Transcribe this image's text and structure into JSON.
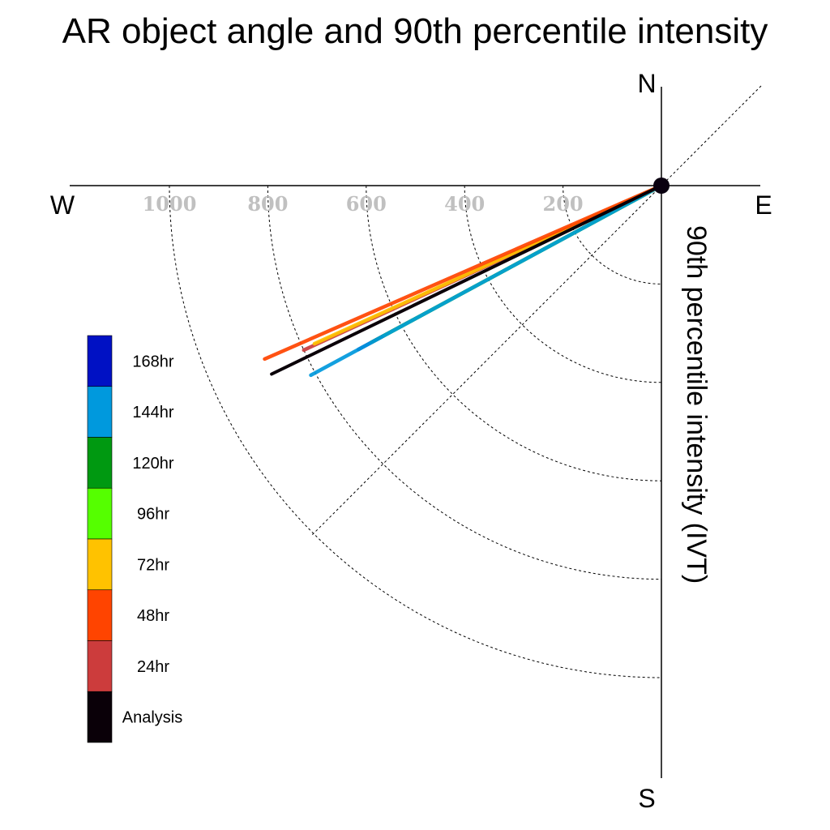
{
  "chart_data": {
    "type": "polar-vector",
    "title": "AR object angle and 90th percentile intensity",
    "radial_label": "90th percentile intensity (IVT)",
    "directions": {
      "north": "N",
      "south": "S",
      "east": "E",
      "west": "W"
    },
    "radial_ticks": [
      200,
      400,
      600,
      800,
      1000
    ],
    "radial_tick_labels": [
      "200",
      "400",
      "600",
      "800",
      "1000"
    ],
    "radial_range": [
      0,
      1200
    ],
    "angle_convention": "degrees clockwise from north",
    "grid": true,
    "legend_position": "left",
    "series": [
      {
        "name": "168hr",
        "color": "#0011c4",
        "angle": 241.6,
        "intensity": 700
      },
      {
        "name": "144hr",
        "color": "#0099dd",
        "angle": 241.6,
        "intensity": 810
      },
      {
        "name": "120hr",
        "color": "#009911",
        "angle": 241.6,
        "intensity": 670
      },
      {
        "name": "96hr",
        "color": "#55ff00",
        "angle": 241.6,
        "intensity": 640
      },
      {
        "name": "72hr",
        "color": "#ffc200",
        "angle": 245.5,
        "intensity": 775
      },
      {
        "name": "48hr",
        "color": "#ff4400",
        "angle": 246.4,
        "intensity": 880
      },
      {
        "name": "24hr",
        "color": "#cc3c3c",
        "angle": 245.3,
        "intensity": 800
      },
      {
        "name": "Analysis",
        "color": "#0a0008",
        "angle": 244.2,
        "intensity": 880
      }
    ],
    "draw_order": [
      "168hr",
      "120hr",
      "96hr",
      "144hr",
      "24hr",
      "72hr",
      "48hr",
      "Analysis"
    ]
  }
}
